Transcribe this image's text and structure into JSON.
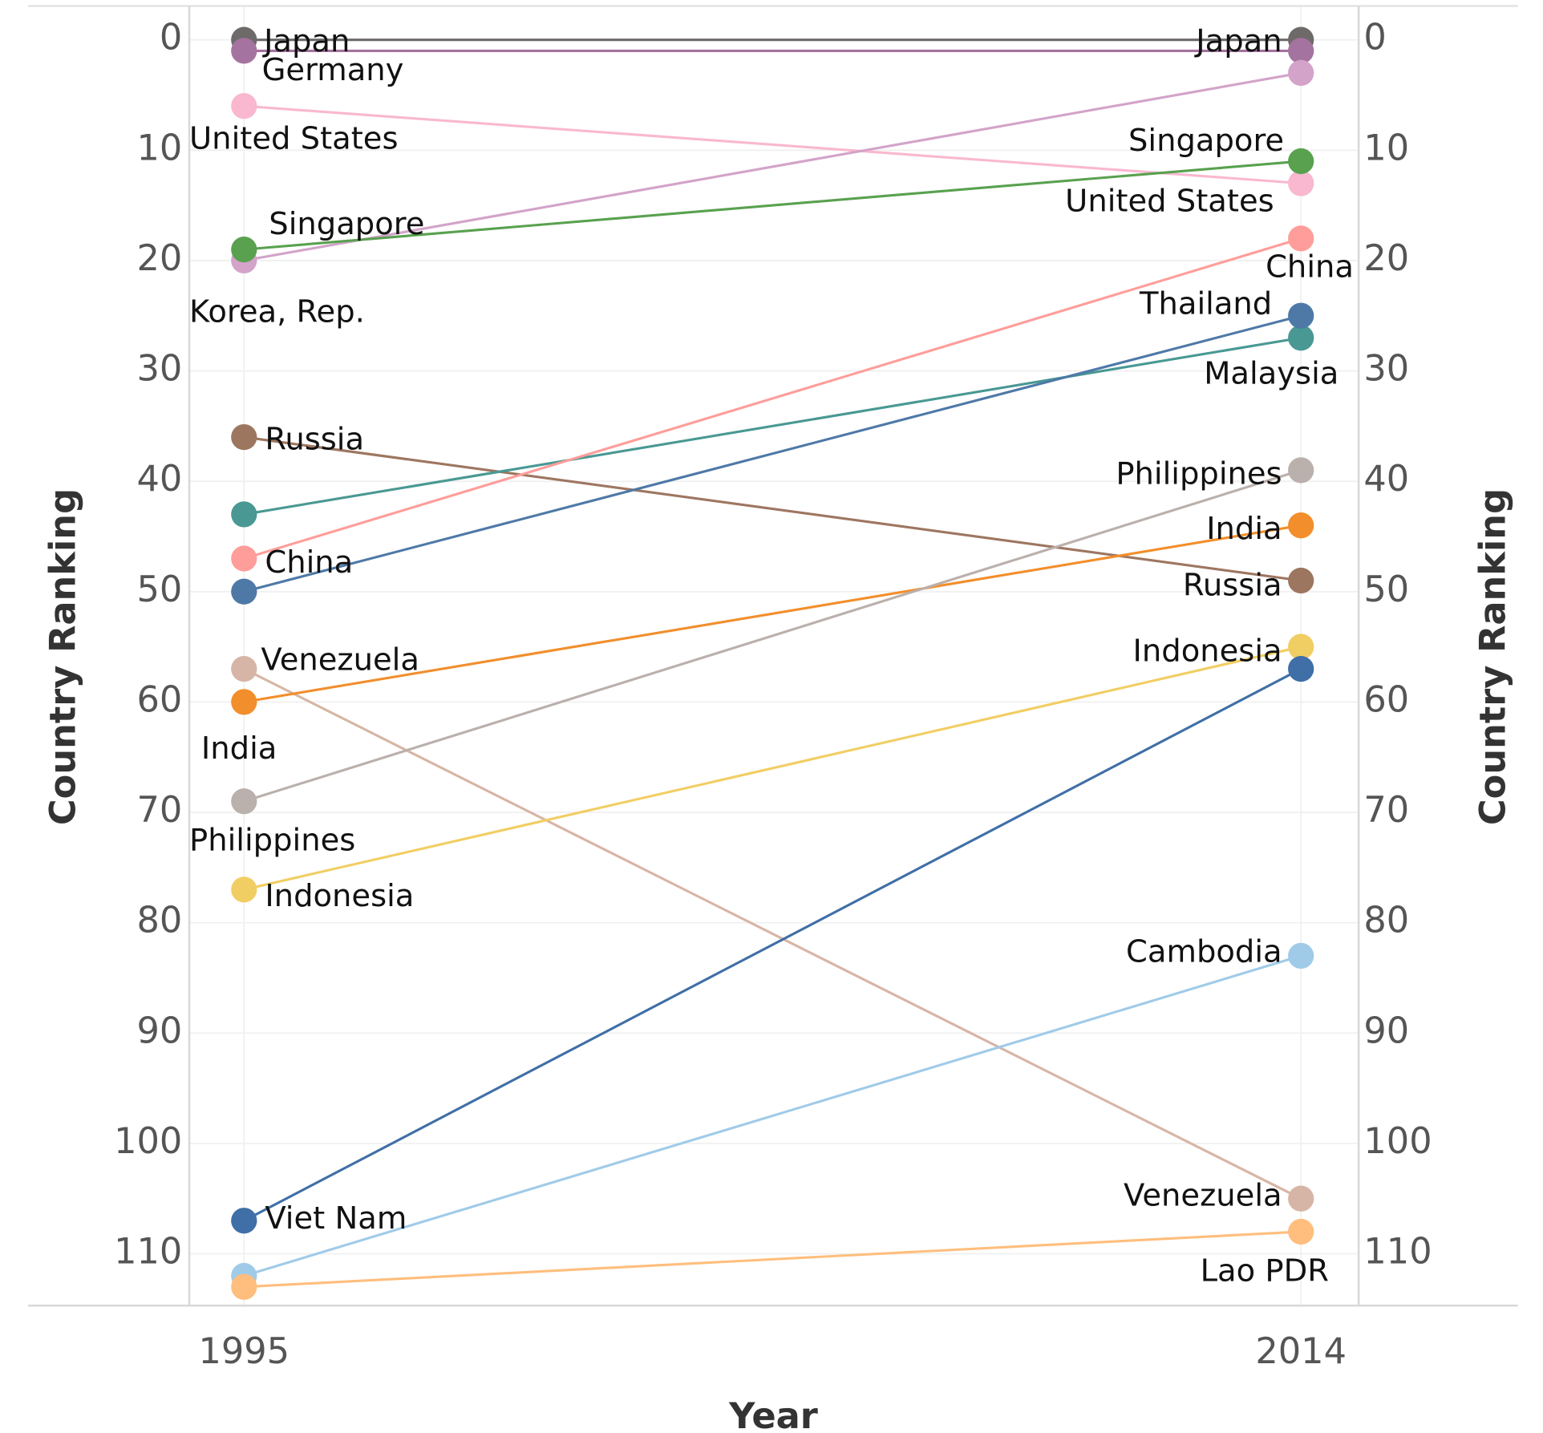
{
  "chart_data": {
    "type": "line",
    "subtype": "slope",
    "title": "",
    "xlabel": "Year",
    "ylabel": "Country Ranking",
    "ylabel_right": "Country Ranking",
    "x": [
      "1995",
      "2014"
    ],
    "ylim": [
      0,
      115
    ],
    "y_reversed": true,
    "y_ticks": [
      0,
      10,
      20,
      30,
      40,
      50,
      60,
      70,
      80,
      90,
      100,
      110
    ],
    "grid": true,
    "legend": "none (direct labels)",
    "series": [
      {
        "name": "Japan",
        "values": [
          0,
          0
        ],
        "color": "#6f6a6a"
      },
      {
        "name": "Germany",
        "values": [
          1,
          1
        ],
        "color": "#a4739f"
      },
      {
        "name": "United States",
        "values": [
          6,
          13
        ],
        "color": "#f9b8cf"
      },
      {
        "name": "Korea, Rep.",
        "values": [
          20,
          3
        ],
        "color": "#d3a3c9"
      },
      {
        "name": "Singapore",
        "values": [
          19,
          11
        ],
        "color": "#59a14f"
      },
      {
        "name": "Russia",
        "values": [
          36,
          49
        ],
        "color": "#9d7660"
      },
      {
        "name": "Malaysia",
        "values": [
          43,
          27
        ],
        "color": "#499894"
      },
      {
        "name": "China",
        "values": [
          47,
          18
        ],
        "color": "#ff9d9a"
      },
      {
        "name": "Thailand",
        "values": [
          50,
          25
        ],
        "color": "#4e79a7"
      },
      {
        "name": "Venezuela",
        "values": [
          57,
          105
        ],
        "color": "#d7b5a6"
      },
      {
        "name": "India",
        "values": [
          60,
          44
        ],
        "color": "#f28e2b"
      },
      {
        "name": "Philippines",
        "values": [
          69,
          39
        ],
        "color": "#bab0ac"
      },
      {
        "name": "Indonesia",
        "values": [
          77,
          55
        ],
        "color": "#f1ce63"
      },
      {
        "name": "Viet Nam",
        "values": [
          107,
          57
        ],
        "color": "#3f6fa6"
      },
      {
        "name": "Cambodia",
        "values": [
          112,
          83
        ],
        "color": "#a0cbe8"
      },
      {
        "name": "Lao PDR",
        "values": [
          113,
          108
        ],
        "color": "#ffbe7d"
      }
    ]
  }
}
